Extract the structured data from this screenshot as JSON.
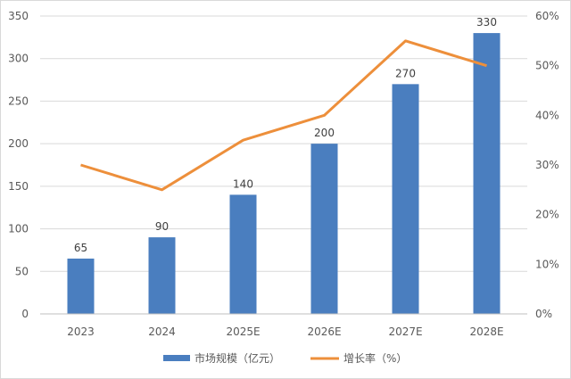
{
  "chart_data": {
    "type": "bar+line",
    "categories": [
      "2023",
      "2024",
      "2025E",
      "2026E",
      "2027E",
      "2028E"
    ],
    "series": [
      {
        "name": "市场规模（亿元）",
        "type": "bar",
        "axis": "left",
        "values": [
          65,
          90,
          140,
          200,
          270,
          330
        ],
        "color": "#4a7ebf",
        "data_labels": [
          "65",
          "90",
          "140",
          "200",
          "270",
          "330"
        ]
      },
      {
        "name": "增长率（%）",
        "type": "line",
        "axis": "right",
        "values": [
          30,
          25,
          35,
          40,
          55,
          50
        ],
        "color": "#ed8f3b"
      }
    ],
    "y_left": {
      "range": [
        0,
        350
      ],
      "ticks": [
        "0",
        "50",
        "100",
        "150",
        "200",
        "250",
        "300",
        "350"
      ]
    },
    "y_right": {
      "range": [
        0,
        60
      ],
      "ticks": [
        "0%",
        "10%",
        "20%",
        "30%",
        "40%",
        "50%",
        "60%"
      ]
    },
    "grid": true,
    "legend": "bottom"
  }
}
